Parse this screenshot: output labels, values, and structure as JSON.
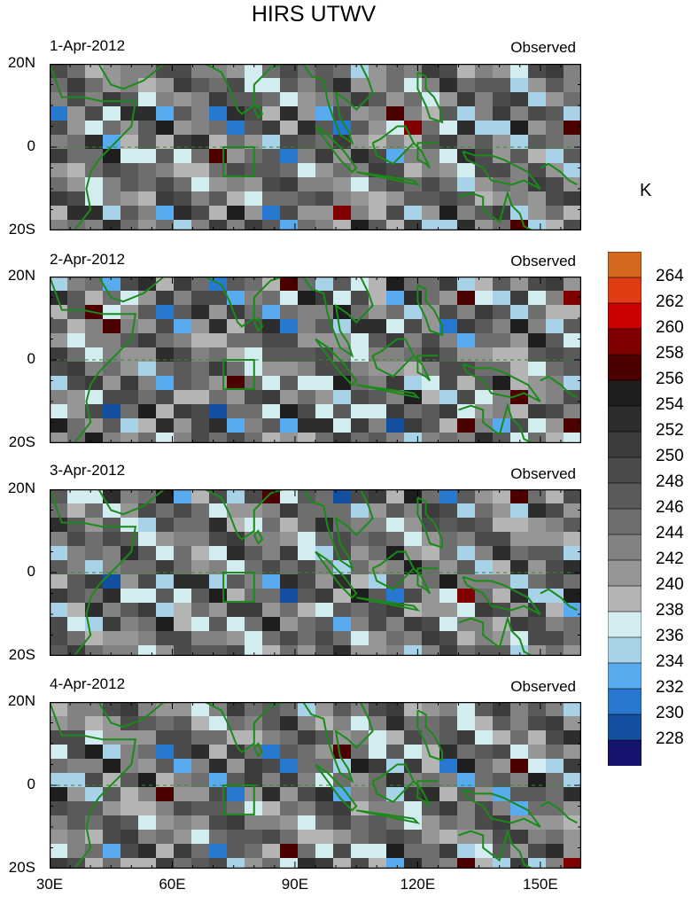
{
  "title": "HIRS UTWV",
  "unit_label": "K",
  "panels": [
    {
      "date": "1-Apr-2012",
      "tag": "Observed"
    },
    {
      "date": "2-Apr-2012",
      "tag": "Observed"
    },
    {
      "date": "3-Apr-2012",
      "tag": "Observed"
    },
    {
      "date": "4-Apr-2012",
      "tag": "Observed"
    }
  ],
  "lat_labels": [
    "20N",
    "0",
    "20S"
  ],
  "lon_labels": [
    "30E",
    "60E",
    "90E",
    "120E",
    "150E"
  ],
  "colorbar": {
    "labels": [
      "264",
      "262",
      "260",
      "258",
      "256",
      "254",
      "252",
      "250",
      "248",
      "246",
      "244",
      "242",
      "240",
      "238",
      "236",
      "234",
      "232",
      "230",
      "228"
    ],
    "colors": [
      "#d2691e",
      "#e03c14",
      "#cc0000",
      "#800000",
      "#4d0000",
      "#1e1e1e",
      "#2d2d2d",
      "#3c3c3c",
      "#4b4b4b",
      "#5a5a5a",
      "#6e6e6e",
      "#828282",
      "#969696",
      "#b4b4b4",
      "#d2ecf0",
      "#a8d2e8",
      "#5aaaee",
      "#2878d2",
      "#1450a0",
      "#14146e"
    ]
  },
  "map_extent": {
    "lon_min": 30,
    "lon_max": 160,
    "lat_min": -20,
    "lat_max": 20
  }
}
